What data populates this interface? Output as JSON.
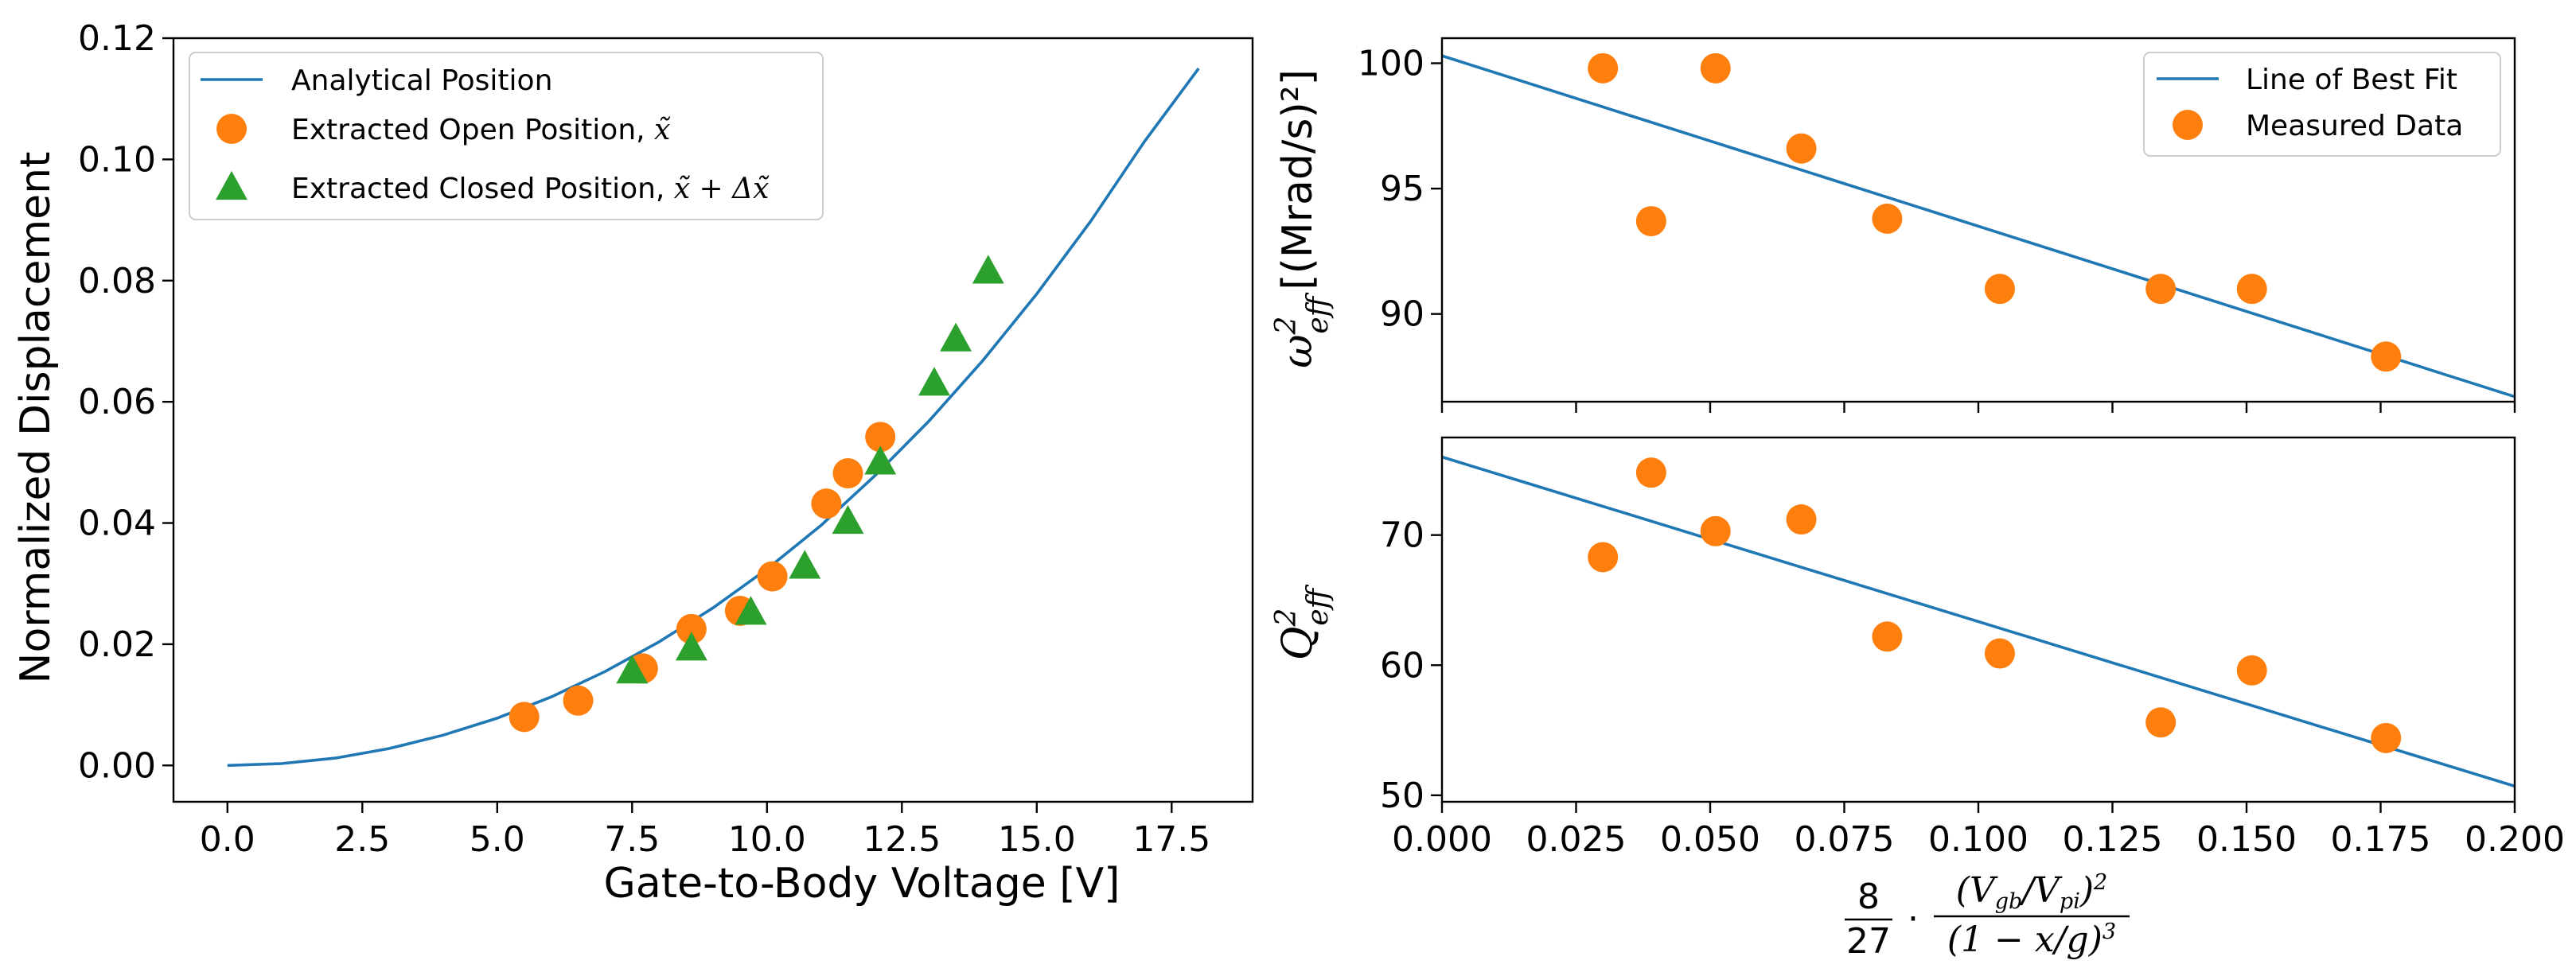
{
  "colors": {
    "line": "#1f77b4",
    "open": "#ff7f0e",
    "closed": "#2ca02c"
  },
  "chart_data": [
    {
      "type": "scatter",
      "xlabel": "Gate-to-Body Voltage [V]",
      "ylabel": "Normalized Displacement",
      "xlim": [
        -1.0,
        19.0
      ],
      "ylim": [
        -0.006,
        0.12
      ],
      "xticks": [
        0.0,
        2.5,
        5.0,
        7.5,
        10.0,
        12.5,
        15.0,
        17.5
      ],
      "xtick_labels": [
        "0.0",
        "2.5",
        "5.0",
        "7.5",
        "10.0",
        "12.5",
        "15.0",
        "17.5"
      ],
      "yticks": [
        0.0,
        0.02,
        0.04,
        0.06,
        0.08,
        0.1,
        0.12
      ],
      "ytick_labels": [
        "0.00",
        "0.02",
        "0.04",
        "0.06",
        "0.08",
        "0.10",
        "0.12"
      ],
      "legend_position": "upper-left",
      "series": [
        {
          "name": "Analytical Position",
          "kind": "line",
          "color": "#1f77b4",
          "x": [
            0,
            1,
            2,
            3,
            4,
            5,
            6,
            7,
            8,
            9,
            10,
            11,
            12,
            13,
            14,
            15,
            16,
            17,
            18
          ],
          "y": [
            0.0,
            0.0003,
            0.0012,
            0.0028,
            0.005,
            0.0078,
            0.0113,
            0.0155,
            0.0204,
            0.026,
            0.0324,
            0.0396,
            0.0478,
            0.0568,
            0.0668,
            0.0778,
            0.0898,
            0.103,
            0.115
          ]
        },
        {
          "name": "Extracted Open Position, ",
          "math": "x̃",
          "kind": "circle",
          "color": "#ff7f0e",
          "x": [
            5.5,
            6.5,
            7.7,
            8.6,
            9.5,
            10.1,
            11.1,
            11.5,
            12.1
          ],
          "y": [
            0.008,
            0.0107,
            0.016,
            0.0225,
            0.0255,
            0.0312,
            0.0432,
            0.0482,
            0.0542
          ]
        },
        {
          "name": "Extracted Closed Position, ",
          "math": "x̃ + Δx̃",
          "kind": "triangle",
          "color": "#2ca02c",
          "x": [
            7.5,
            8.6,
            9.7,
            10.7,
            11.5,
            12.1,
            13.1,
            13.5,
            14.1
          ],
          "y": [
            0.0155,
            0.0193,
            0.0252,
            0.0328,
            0.0402,
            0.05,
            0.063,
            0.0703,
            0.0815
          ]
        }
      ]
    },
    {
      "type": "scatter",
      "ylabel": "[(Mrad/s)²]",
      "ylabel_math": "ω²eff",
      "xlim": [
        0.0,
        0.2
      ],
      "ylim": [
        86.5,
        101.0
      ],
      "yticks": [
        90,
        95,
        100
      ],
      "ytick_labels": [
        "90",
        "95",
        "100"
      ],
      "legend_position": "upper-right",
      "series": [
        {
          "name": "Line of Best Fit",
          "kind": "line",
          "color": "#1f77b4",
          "x": [
            0.0,
            0.2
          ],
          "y": [
            100.3,
            86.7
          ]
        },
        {
          "name": "Measured Data",
          "kind": "circle",
          "color": "#ff7f0e",
          "x": [
            0.03,
            0.039,
            0.051,
            0.067,
            0.083,
            0.104,
            0.134,
            0.151,
            0.176
          ],
          "y": [
            99.8,
            93.7,
            99.8,
            96.6,
            93.8,
            91.0,
            91.0,
            91.0,
            88.3
          ]
        }
      ]
    },
    {
      "type": "scatter",
      "ylabel_math": "Q²eff",
      "xlim": [
        0.0,
        0.2
      ],
      "ylim": [
        49.5,
        77.5
      ],
      "xticks": [
        0.0,
        0.025,
        0.05,
        0.075,
        0.1,
        0.125,
        0.15,
        0.175,
        0.2
      ],
      "xtick_labels": [
        "0.000",
        "0.025",
        "0.050",
        "0.075",
        "0.100",
        "0.125",
        "0.150",
        "0.175",
        "0.200"
      ],
      "yticks": [
        50,
        60,
        70
      ],
      "ytick_labels": [
        "50",
        "60",
        "70"
      ],
      "series": [
        {
          "name": "Line of Best Fit",
          "kind": "line",
          "color": "#1f77b4",
          "x": [
            0.0,
            0.2
          ],
          "y": [
            76.0,
            50.7
          ]
        },
        {
          "name": "Measured Data",
          "kind": "circle",
          "color": "#ff7f0e",
          "x": [
            0.03,
            0.039,
            0.051,
            0.067,
            0.083,
            0.104,
            0.134,
            0.151,
            0.176
          ],
          "y": [
            68.3,
            74.8,
            70.3,
            71.2,
            62.2,
            60.9,
            55.6,
            59.6,
            54.4
          ]
        }
      ]
    }
  ],
  "xlabel_right": {
    "coef_num": "8",
    "coef_den": "27",
    "dot": "·",
    "num": "(Vgb/Vpi)²",
    "den": "(1 − x/g)³"
  }
}
